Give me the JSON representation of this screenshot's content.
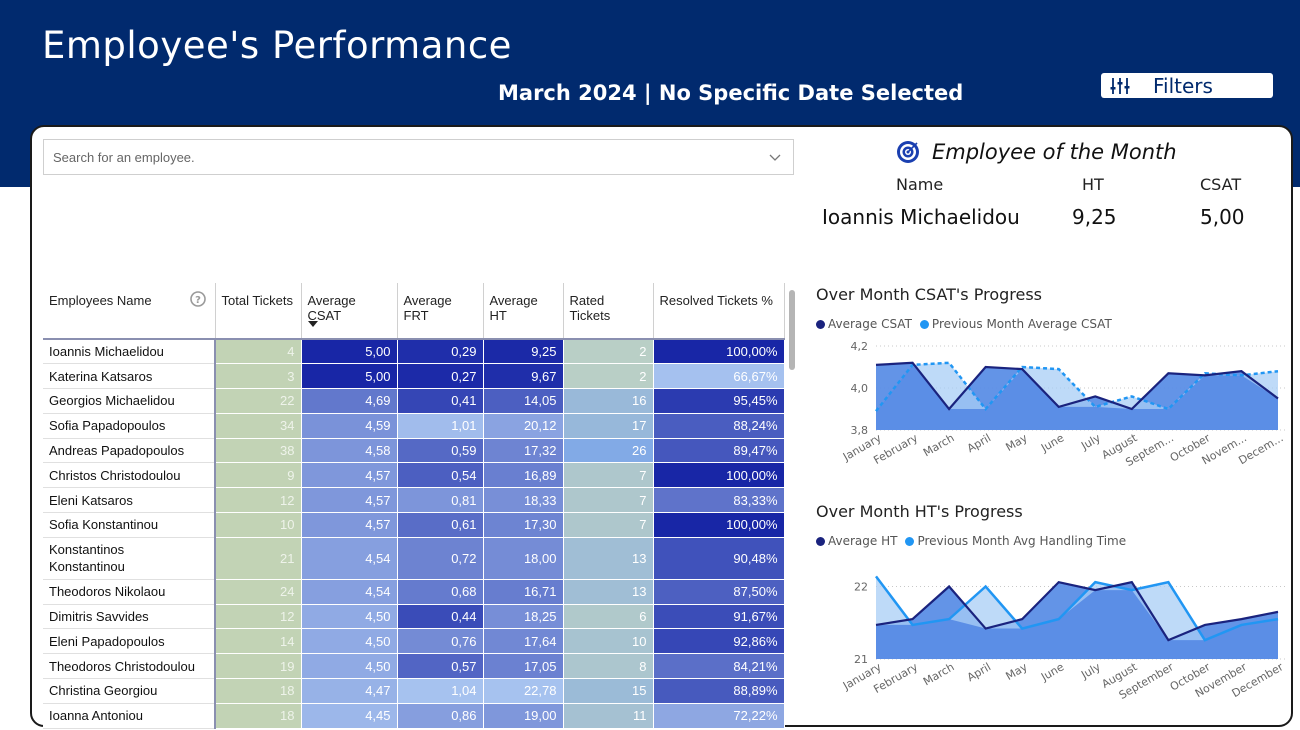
{
  "header": {
    "title": "Employee's Performance",
    "subtitle": "March 2024 | No Specific Date Selected",
    "filters_label": "Filters"
  },
  "search": {
    "placeholder": "Search for an employee."
  },
  "table": {
    "columns": [
      "Employees Name",
      "Total Tickets",
      "Average CSAT",
      "Average FRT",
      "Average HT",
      "Rated Tickets",
      "Resolved Tickets %"
    ],
    "rows": [
      {
        "name": "Ioannis Michaelidou",
        "total": "4",
        "csat": "5,00",
        "frt": "0,29",
        "ht": "9,25",
        "rated": "2",
        "resolved": "100,00%"
      },
      {
        "name": "Katerina Katsaros",
        "total": "3",
        "csat": "5,00",
        "frt": "0,27",
        "ht": "9,67",
        "rated": "2",
        "resolved": "66,67%"
      },
      {
        "name": "Georgios Michaelidou",
        "total": "22",
        "csat": "4,69",
        "frt": "0,41",
        "ht": "14,05",
        "rated": "16",
        "resolved": "95,45%"
      },
      {
        "name": "Sofia Papadopoulos",
        "total": "34",
        "csat": "4,59",
        "frt": "1,01",
        "ht": "20,12",
        "rated": "17",
        "resolved": "88,24%"
      },
      {
        "name": "Andreas Papadopoulos",
        "total": "38",
        "csat": "4,58",
        "frt": "0,59",
        "ht": "17,32",
        "rated": "26",
        "resolved": "89,47%"
      },
      {
        "name": "Christos Christodoulou",
        "total": "9",
        "csat": "4,57",
        "frt": "0,54",
        "ht": "16,89",
        "rated": "7",
        "resolved": "100,00%"
      },
      {
        "name": "Eleni Katsaros",
        "total": "12",
        "csat": "4,57",
        "frt": "0,81",
        "ht": "18,33",
        "rated": "7",
        "resolved": "83,33%"
      },
      {
        "name": "Sofia Konstantinou",
        "total": "10",
        "csat": "4,57",
        "frt": "0,61",
        "ht": "17,30",
        "rated": "7",
        "resolved": "100,00%"
      },
      {
        "name": "Konstantinos Konstantinou",
        "total": "21",
        "csat": "4,54",
        "frt": "0,72",
        "ht": "18,00",
        "rated": "13",
        "resolved": "90,48%"
      },
      {
        "name": "Theodoros Nikolaou",
        "total": "24",
        "csat": "4,54",
        "frt": "0,68",
        "ht": "16,71",
        "rated": "13",
        "resolved": "87,50%"
      },
      {
        "name": "Dimitris Savvides",
        "total": "12",
        "csat": "4,50",
        "frt": "0,44",
        "ht": "18,25",
        "rated": "6",
        "resolved": "91,67%"
      },
      {
        "name": "Eleni Papadopoulos",
        "total": "14",
        "csat": "4,50",
        "frt": "0,76",
        "ht": "17,64",
        "rated": "10",
        "resolved": "92,86%"
      },
      {
        "name": "Theodoros Christodoulou",
        "total": "19",
        "csat": "4,50",
        "frt": "0,57",
        "ht": "17,05",
        "rated": "8",
        "resolved": "84,21%"
      },
      {
        "name": "Christina Georgiou",
        "total": "18",
        "csat": "4,47",
        "frt": "1,04",
        "ht": "22,78",
        "rated": "15",
        "resolved": "88,89%"
      },
      {
        "name": "Ioanna Antoniou",
        "total": "18",
        "csat": "4,45",
        "frt": "0,86",
        "ht": "19,00",
        "rated": "11",
        "resolved": "72,22%"
      }
    ]
  },
  "employee_of_month": {
    "title": "Employee of the Month",
    "headers": {
      "name": "Name",
      "ht": "HT",
      "csat": "CSAT"
    },
    "name": "Ioannis Michaelidou",
    "ht": "9,25",
    "csat": "5,00"
  },
  "colors": {
    "header_bg": "#012a6e",
    "series_current": "#1a237e",
    "series_previous": "#2196f3",
    "area_fill": "#5b8ee6",
    "total_tickets_bg": "#c2d3b5"
  },
  "chart_data": [
    {
      "type": "area",
      "title": "Over Month CSAT's Progress",
      "categories": [
        "January",
        "February",
        "March",
        "April",
        "May",
        "June",
        "July",
        "August",
        "Septem...",
        "October",
        "Novem...",
        "Decem..."
      ],
      "series": [
        {
          "name": "Average CSAT",
          "values": [
            4.11,
            4.12,
            3.9,
            4.1,
            4.09,
            3.91,
            3.96,
            3.9,
            4.07,
            4.06,
            4.08,
            3.95
          ]
        },
        {
          "name": "Previous Month Average CSAT",
          "values": [
            3.89,
            4.11,
            4.12,
            3.9,
            4.1,
            4.09,
            3.91,
            3.96,
            3.9,
            4.07,
            4.06,
            4.08
          ]
        }
      ],
      "ylim": [
        3.8,
        4.2
      ],
      "yticks": [
        "4,2",
        "4,0",
        "3,8"
      ]
    },
    {
      "type": "area",
      "title": "Over Month HT's Progress",
      "categories": [
        "January",
        "February",
        "March",
        "April",
        "May",
        "June",
        "July",
        "August",
        "September",
        "October",
        "November",
        "December"
      ],
      "series": [
        {
          "name": "Average HT",
          "values": [
            21.47,
            21.55,
            22.0,
            21.42,
            21.55,
            22.06,
            21.95,
            22.06,
            21.26,
            21.47,
            21.55,
            21.65
          ]
        },
        {
          "name": "Previous Month Avg Handling Time",
          "values": [
            22.14,
            21.47,
            21.55,
            22.0,
            21.42,
            21.55,
            22.06,
            21.95,
            22.06,
            21.26,
            21.47,
            21.55
          ]
        }
      ],
      "ylim": [
        21.0,
        22.2
      ],
      "yticks": [
        "22",
        "21"
      ]
    }
  ]
}
